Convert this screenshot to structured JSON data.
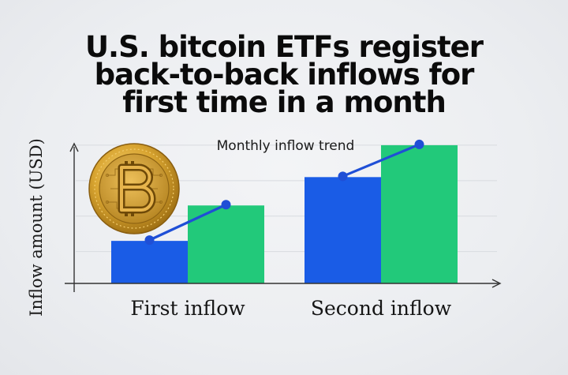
{
  "headline": {
    "lines": [
      "U.S. bitcoin ETFs register",
      "back-to-back inflows for",
      "first time in a month"
    ]
  },
  "icons": {
    "coin": "bitcoin-coin-icon"
  },
  "colors": {
    "bar_blue": "#1a5ce6",
    "bar_green": "#22c97a",
    "trend_line": "#1f4fd6",
    "coin_gold": "#d9a531"
  },
  "chart_data": {
    "type": "bar",
    "title": "Monthly inflow trend",
    "ylabel": "Inflow amount (USD)",
    "xlabel": "",
    "categories": [
      "First inflow",
      "Second inflow"
    ],
    "series": [
      {
        "values": [
          1.2,
          3.0
        ]
      },
      {
        "values": [
          2.2,
          3.9
        ]
      }
    ],
    "trend": [
      [
        1.2,
        2.2
      ],
      [
        3.0,
        3.9
      ]
    ],
    "ylim": [
      0,
      4.5
    ],
    "grid": true,
    "legend": "none"
  }
}
